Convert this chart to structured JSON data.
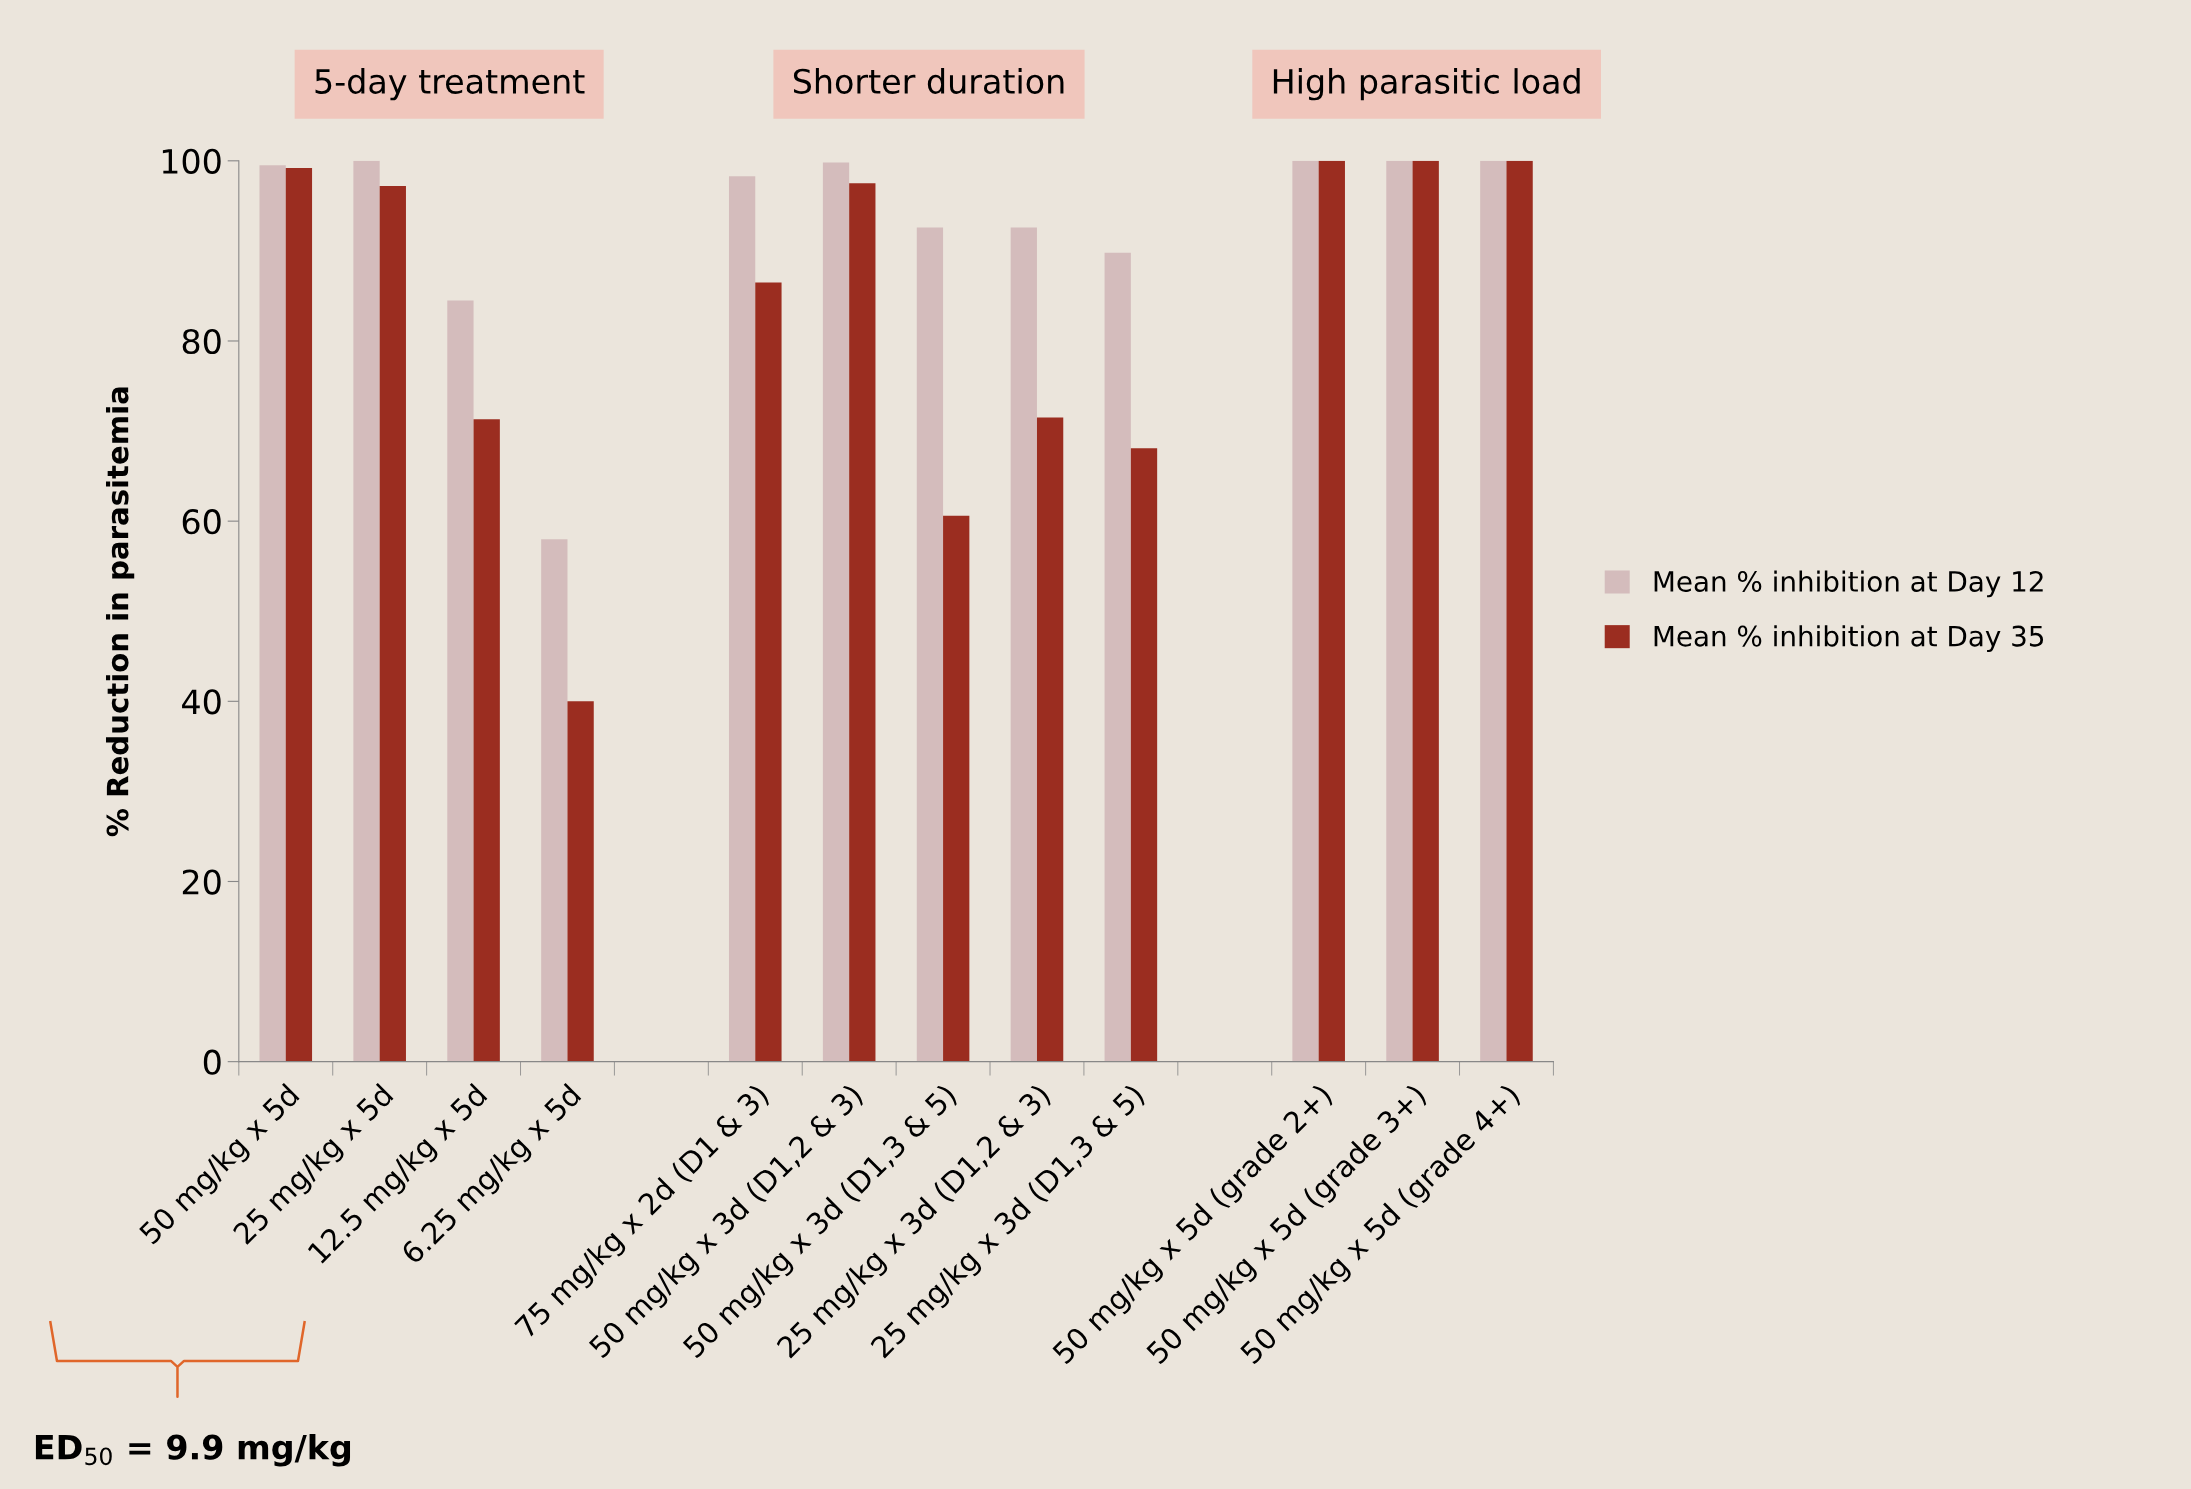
{
  "chart_data": {
    "type": "bar",
    "ylabel": "% Reduction in parasitemia",
    "categories": [
      "50 mg/kg x 5d",
      "25 mg/kg x 5d",
      "12.5 mg/kg x 5d",
      "6.25 mg/kg x 5d",
      null,
      "75 mg/kg x 2d (D1 & 3)",
      "50 mg/kg x 3d (D1,2 & 3)",
      "50 mg/kg x 3d (D1,3 & 5)",
      "25 mg/kg x 3d (D1,2 & 3)",
      "25 mg/kg x 3d (D1,3 & 5)",
      null,
      "50 mg/kg x 5d (grade 2+)",
      "50 mg/kg x 5d (grade 3+)",
      "50 mg/kg x 5d (grade 4+)"
    ],
    "series": [
      {
        "name": "Mean % inhibition at Day 12",
        "color": "#d4bcbc",
        "values": [
          99.5,
          100,
          84.5,
          58,
          null,
          98.3,
          99.8,
          92.6,
          92.6,
          89.8,
          null,
          100,
          100,
          100
        ]
      },
      {
        "name": "Mean % inhibition at Day 35",
        "color": "#9b2d20",
        "values": [
          99.2,
          97.2,
          71.3,
          40,
          null,
          86.5,
          97.5,
          60.6,
          71.5,
          68.1,
          null,
          100,
          100,
          100
        ]
      }
    ],
    "ylim": [
      0,
      100
    ],
    "yticks": [
      0,
      20,
      40,
      60,
      80,
      100
    ],
    "grid": false,
    "legend": "right",
    "annotations": [
      "5-day treatment",
      "Shorter duration",
      "High parasitic load",
      "ED$_{50}$ = 9.9 mg/kg"
    ]
  }
}
